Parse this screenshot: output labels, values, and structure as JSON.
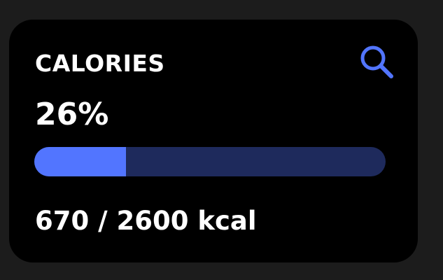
{
  "card": {
    "title": "CALORIES",
    "percent_text": "26%",
    "amount_text": "670 / 2600 kcal",
    "consumed": 670,
    "goal": 2600,
    "progress_fraction": 0.26,
    "search_icon": "search-icon"
  },
  "colors": {
    "background": "#1c1c1c",
    "card": "#000000",
    "text": "#ffffff",
    "accent": "#5275ff",
    "track": "#1e2a5c"
  }
}
